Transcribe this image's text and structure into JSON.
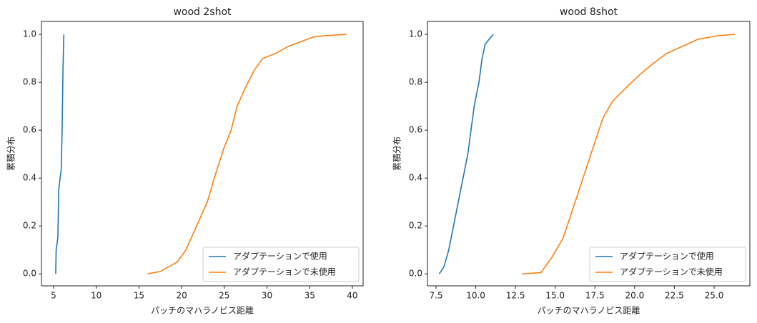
{
  "chart_data": [
    {
      "type": "line",
      "title": "wood 2shot",
      "xlabel": "パッチのマハラノビス距離",
      "ylabel": "累積分布",
      "xlim": [
        3.58,
        41.26
      ],
      "ylim": [
        -0.05,
        1.054
      ],
      "xticks": [
        5,
        10,
        15,
        20,
        25,
        30,
        35,
        40
      ],
      "yticks": [
        {
          "value": 0,
          "label": "0.0"
        },
        {
          "value": 0.2,
          "label": "0.2"
        },
        {
          "value": 0.4,
          "label": "0.4"
        },
        {
          "value": 0.6,
          "label": "0.6"
        },
        {
          "value": 0.8,
          "label": "0.8"
        },
        {
          "value": 1,
          "label": "1.0"
        }
      ],
      "legend": "lower right",
      "series": [
        {
          "name": "アダプテーションで使用",
          "color": "#1f77b4",
          "x": [
            5.25,
            5.3,
            5.5,
            5.6,
            5.9,
            6.0,
            6.1,
            6.2
          ],
          "values": [
            0,
            0.1,
            0.15,
            0.35,
            0.44,
            0.6,
            0.85,
            1.0
          ]
        },
        {
          "name": "アダプテーションで未使用",
          "color": "#ff7f0e",
          "x": [
            16,
            17.5,
            18.5,
            19.5,
            20.5,
            21.5,
            22,
            23,
            24,
            25,
            25.8,
            26.5,
            27.5,
            28.5,
            29.5,
            31,
            32.5,
            34,
            35.5,
            37,
            39.3
          ],
          "values": [
            0,
            0.01,
            0.03,
            0.05,
            0.1,
            0.18,
            0.22,
            0.3,
            0.42,
            0.53,
            0.6,
            0.7,
            0.78,
            0.85,
            0.9,
            0.92,
            0.95,
            0.97,
            0.99,
            0.995,
            1.0
          ]
        }
      ]
    },
    {
      "type": "line",
      "title": "wood 8shot",
      "xlabel": "パッチのマハラノビス距離",
      "ylabel": "累積分布",
      "xlim": [
        6.96,
        27.25
      ],
      "ylim": [
        -0.05,
        1.054
      ],
      "xticks": [
        7.5,
        {
          "value": 10,
          "label": "10.0"
        },
        12.5,
        {
          "value": 15,
          "label": "15.0"
        },
        17.5,
        {
          "value": 20,
          "label": "20.0"
        },
        22.5,
        {
          "value": 25,
          "label": "25.0"
        }
      ],
      "yticks": [
        {
          "value": 0,
          "label": "0.0"
        },
        {
          "value": 0.2,
          "label": "0.2"
        },
        {
          "value": 0.4,
          "label": "0.4"
        },
        {
          "value": 0.6,
          "label": "0.6"
        },
        {
          "value": 0.8,
          "label": "0.8"
        },
        {
          "value": 1,
          "label": "1.0"
        }
      ],
      "legend": "lower right",
      "series": [
        {
          "name": "アダプテーションで使用",
          "color": "#1f77b4",
          "x": [
            7.7,
            8.0,
            8.3,
            8.6,
            8.9,
            9.2,
            9.5,
            9.7,
            9.9,
            10.2,
            10.4,
            10.6,
            11.1
          ],
          "values": [
            0,
            0.03,
            0.1,
            0.2,
            0.3,
            0.4,
            0.5,
            0.6,
            0.7,
            0.8,
            0.9,
            0.96,
            1.0
          ]
        },
        {
          "name": "アダプテーションで未使用",
          "color": "#ff7f0e",
          "x": [
            12.9,
            14.1,
            14.8,
            15.5,
            16,
            16.5,
            17,
            17.5,
            18.0,
            18.6,
            19.5,
            20.3,
            21,
            22,
            23,
            24,
            25.3,
            26.3
          ],
          "values": [
            0,
            0.005,
            0.07,
            0.15,
            0.25,
            0.35,
            0.45,
            0.55,
            0.65,
            0.72,
            0.78,
            0.83,
            0.87,
            0.92,
            0.95,
            0.98,
            0.995,
            1.0
          ]
        }
      ]
    }
  ]
}
